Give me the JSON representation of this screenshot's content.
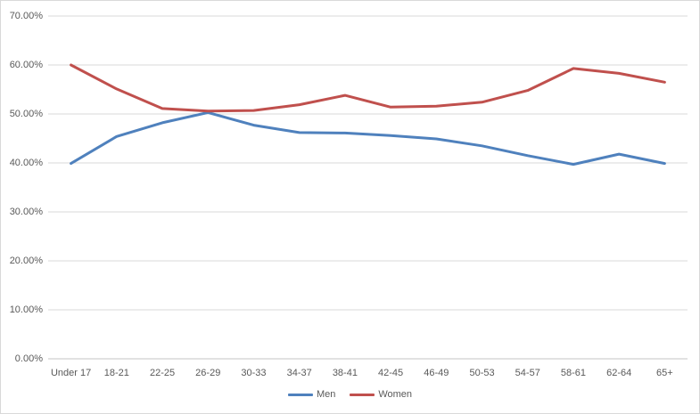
{
  "chart_data": {
    "type": "line",
    "title": "",
    "xlabel": "",
    "ylabel": "",
    "categories": [
      "Under 17",
      "18-21",
      "22-25",
      "26-29",
      "30-33",
      "34-37",
      "38-41",
      "42-45",
      "46-49",
      "50-53",
      "54-57",
      "58-61",
      "62-64",
      "65+"
    ],
    "series": [
      {
        "name": "Men",
        "color": "#4F81BD",
        "values": [
          39.9,
          45.4,
          48.2,
          50.3,
          47.7,
          46.2,
          46.1,
          45.6,
          44.9,
          43.5,
          41.5,
          39.7,
          41.8,
          39.9
        ]
      },
      {
        "name": "Women",
        "color": "#C0504D",
        "values": [
          60.0,
          55.1,
          51.1,
          50.6,
          50.7,
          51.9,
          53.8,
          51.4,
          51.6,
          52.4,
          54.8,
          59.3,
          58.3,
          56.5
        ]
      }
    ],
    "ylim": [
      0,
      70
    ],
    "y_tick_step": 10,
    "y_tick_labels": [
      "0.00%",
      "10.00%",
      "20.00%",
      "30.00%",
      "40.00%",
      "50.00%",
      "60.00%",
      "70.00%"
    ],
    "grid": true,
    "legend_position": "bottom-center",
    "colors": {
      "gridline": "#D9D9D9",
      "axis_line": "#C6C6C6",
      "tick_text": "#595959",
      "background": "#FFFFFF",
      "border": "#D9D9D9"
    }
  }
}
